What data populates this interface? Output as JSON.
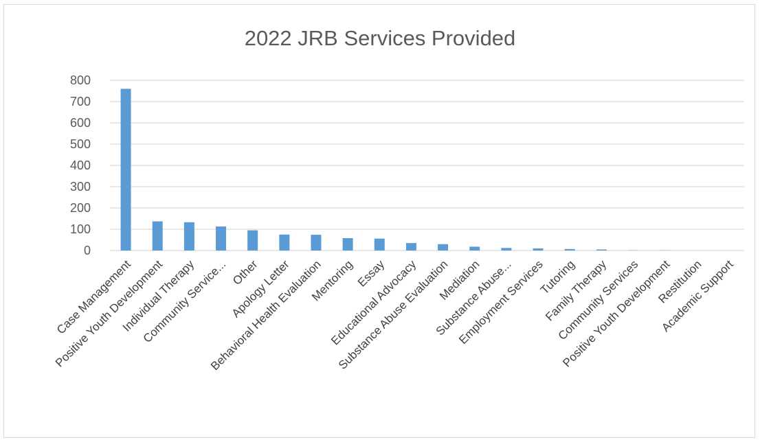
{
  "chart_data": {
    "type": "bar",
    "title": "2022 JRB Services Provided",
    "xlabel": "",
    "ylabel": "",
    "ylim": [
      0,
      800
    ],
    "yticks": [
      0,
      100,
      200,
      300,
      400,
      500,
      600,
      700,
      800
    ],
    "grid": true,
    "legend": "none",
    "bar_color": "#5b9bd5",
    "categories": [
      "Case Management",
      "Positive Youth Development",
      "Individual Therapy",
      "Community Service...",
      "Other",
      "Apology Letter",
      "Behavioral Health Evaluation",
      "Mentoring",
      "Essay",
      "Educational Advocacy",
      "Substance Abuse Evaluation",
      "Mediation",
      "Substance Abuse...",
      "Employment Services",
      "Tutoring",
      "Family Therapy",
      "Community Services",
      "Positive Youth Development",
      "Restitution",
      "Academic Support"
    ],
    "values": [
      760,
      137,
      133,
      113,
      95,
      75,
      74,
      58,
      56,
      35,
      30,
      18,
      12,
      10,
      7,
      5,
      1,
      1,
      0,
      0
    ]
  }
}
